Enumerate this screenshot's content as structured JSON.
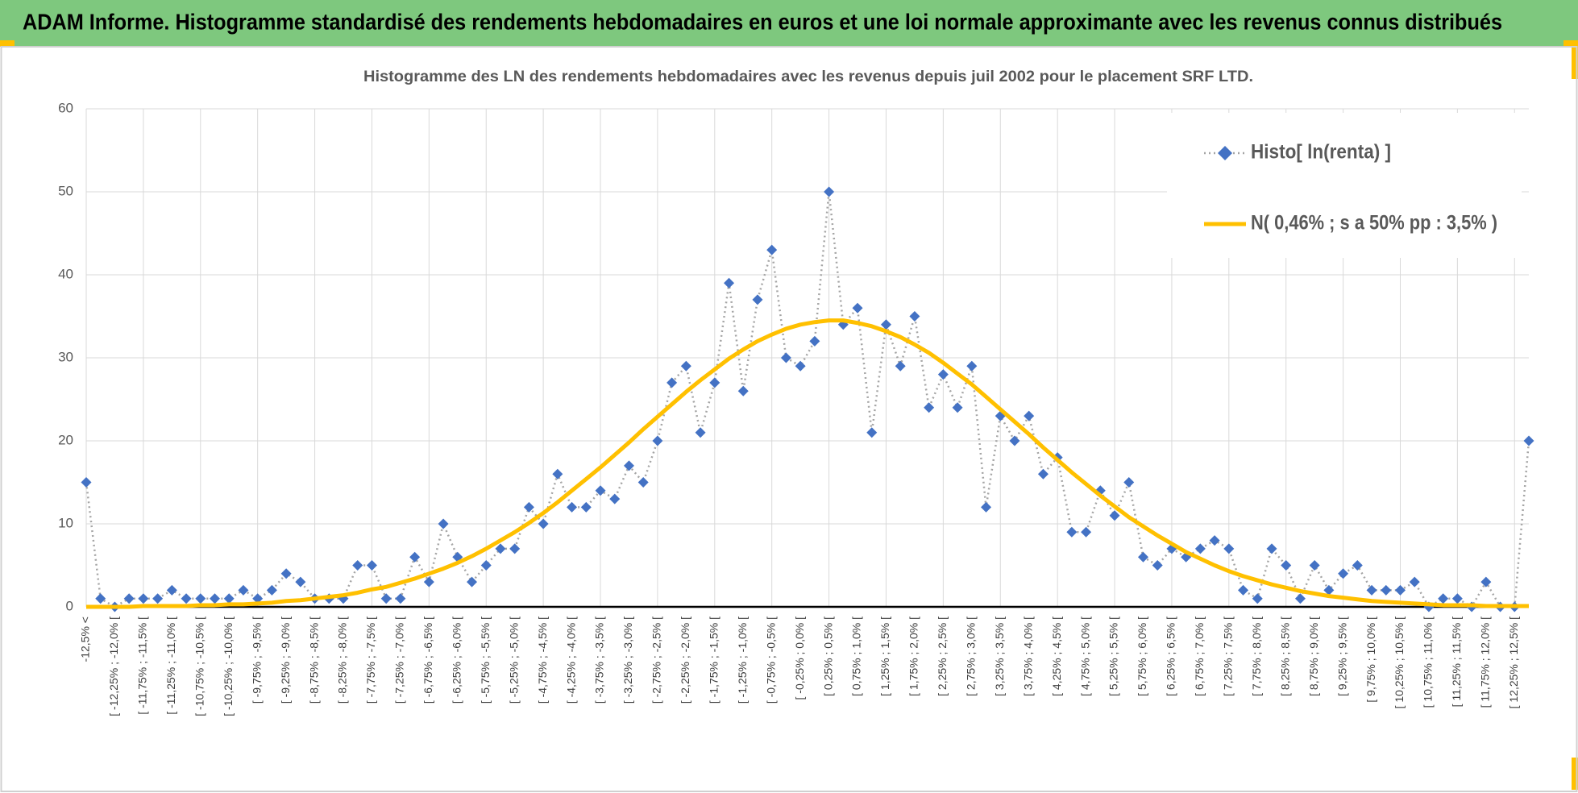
{
  "header": {
    "title": "ADAM Informe. Histogramme standardisé des rendements hebdomadaires en euros et une loi normale approximante avec les revenus connus distribués"
  },
  "chart_data": {
    "type": "line",
    "title": "Histogramme des LN des rendements hebdomadaires avec les revenus depuis juil 2002 pour le placement SRF LTD.",
    "categories": [
      "-12,5% <",
      null,
      "[ -12,25% ; -12,0% [",
      null,
      "[ -11,75% ; -11,5% [",
      null,
      "[ -11,25% ; -11,0% [",
      null,
      "[ -10,75% ; -10,5% [",
      null,
      "[ -10,25% ; -10,0% [",
      null,
      "[ -9,75% ; -9,5% [",
      null,
      "[ -9,25% ; -9,0% [",
      null,
      "[ -8,75% ; -8,5% [",
      null,
      "[ -8,25% ; -8,0% [",
      null,
      "[ -7,75% ; -7,5% [",
      null,
      "[ -7,25% ; -7,0% [",
      null,
      "[ -6,75% ; -6,5% [",
      null,
      "[ -6,25% ; -6,0% [",
      null,
      "[ -5,75% ; -5,5% [",
      null,
      "[ -5,25% ; -5,0% [",
      null,
      "[ -4,75% ; -4,5% [",
      null,
      "[ -4,25% ; -4,0% [",
      null,
      "[ -3,75% ; -3,5% [",
      null,
      "[ -3,25% ; -3,0% [",
      null,
      "[ -2,75% ; -2,5% [",
      null,
      "[ -2,25% ; -2,0% [",
      null,
      "[ -1,75% ; -1,5% [",
      null,
      "[ -1,25% ; -1,0% [",
      null,
      "[ -0,75% ; -0,5% [",
      null,
      "[ -0,25% ; 0,0% [",
      null,
      "[ 0,25% ; 0,5% [",
      null,
      "[ 0,75% ; 1,0% [",
      null,
      "[ 1,25% ; 1,5% [",
      null,
      "[ 1,75% ; 2,0% [",
      null,
      "[ 2,25% ; 2,5% [",
      null,
      "[ 2,75% ; 3,0% [",
      null,
      "[ 3,25% ; 3,5% [",
      null,
      "[ 3,75% ; 4,0% [",
      null,
      "[ 4,25% ; 4,5% [",
      null,
      "[ 4,75% ; 5,0% [",
      null,
      "[ 5,25% ; 5,5% [",
      null,
      "[ 5,75% ; 6,0% [",
      null,
      "[ 6,25% ; 6,5% [",
      null,
      "[ 6,75% ; 7,0% [",
      null,
      "[ 7,25% ; 7,5% [",
      null,
      "[ 7,75% ; 8,0% [",
      null,
      "[ 8,25% ; 8,5% [",
      null,
      "[ 8,75% ; 9,0% [",
      null,
      "[ 9,25% ; 9,5% [",
      null,
      "[ 9,75% ; 10,0% [",
      null,
      "[ 10,25% ; 10,5% [",
      null,
      "[ 10,75% ; 11,0% [",
      null,
      "[ 11,25% ; 11,5% [",
      null,
      "[ 11,75% ; 12,0% [",
      null,
      "[ 12,25% ; 12,5% [",
      null
    ],
    "series": [
      {
        "name": "Histo[ ln(renta) ]",
        "color": "#4472c4",
        "values": [
          15,
          1,
          0,
          1,
          1,
          1,
          2,
          1,
          1,
          1,
          1,
          2,
          1,
          2,
          4,
          3,
          1,
          1,
          1,
          5,
          5,
          1,
          1,
          6,
          3,
          10,
          6,
          3,
          5,
          7,
          7,
          12,
          10,
          16,
          12,
          12,
          14,
          13,
          17,
          15,
          20,
          27,
          29,
          21,
          27,
          39,
          26,
          37,
          43,
          30,
          29,
          32,
          50,
          34,
          36,
          21,
          34,
          29,
          35,
          24,
          28,
          24,
          29,
          12,
          23,
          20,
          23,
          16,
          18,
          9,
          9,
          14,
          11,
          15,
          6,
          5,
          7,
          6,
          7,
          8,
          7,
          2,
          1,
          7,
          5,
          1,
          5,
          2,
          4,
          5,
          2,
          2,
          2,
          3,
          0,
          1,
          1,
          0,
          3,
          0,
          0,
          20
        ]
      },
      {
        "name": "N( 0,46% ; s a 50% pp : 3,5% )",
        "color": "#ffc000",
        "values": [
          0.0,
          0.0,
          0.0,
          0.0,
          0.1,
          0.1,
          0.1,
          0.1,
          0.2,
          0.2,
          0.3,
          0.3,
          0.4,
          0.5,
          0.7,
          0.8,
          1.0,
          1.2,
          1.4,
          1.7,
          2.1,
          2.4,
          2.9,
          3.4,
          4.0,
          4.6,
          5.3,
          6.1,
          7.0,
          8.0,
          9.0,
          10.1,
          11.3,
          12.6,
          14.0,
          15.4,
          16.8,
          18.3,
          19.8,
          21.4,
          22.9,
          24.4,
          25.9,
          27.3,
          28.6,
          29.9,
          31.0,
          32.0,
          32.8,
          33.5,
          34.0,
          34.3,
          34.5,
          34.5,
          34.2,
          33.8,
          33.2,
          32.5,
          31.6,
          30.6,
          29.4,
          28.1,
          26.8,
          25.3,
          23.8,
          22.3,
          20.8,
          19.2,
          17.7,
          16.2,
          14.8,
          13.4,
          12.1,
          10.8,
          9.7,
          8.6,
          7.6,
          6.6,
          5.8,
          5.0,
          4.3,
          3.7,
          3.2,
          2.7,
          2.3,
          1.9,
          1.6,
          1.3,
          1.1,
          0.9,
          0.7,
          0.6,
          0.5,
          0.4,
          0.3,
          0.2,
          0.2,
          0.2,
          0.1,
          0.1,
          0.1,
          0.1
        ]
      }
    ],
    "ylim": [
      0,
      60
    ],
    "yticks": [
      0,
      10,
      20,
      30,
      40,
      50,
      60
    ],
    "grid": true,
    "legend": "upper right"
  }
}
